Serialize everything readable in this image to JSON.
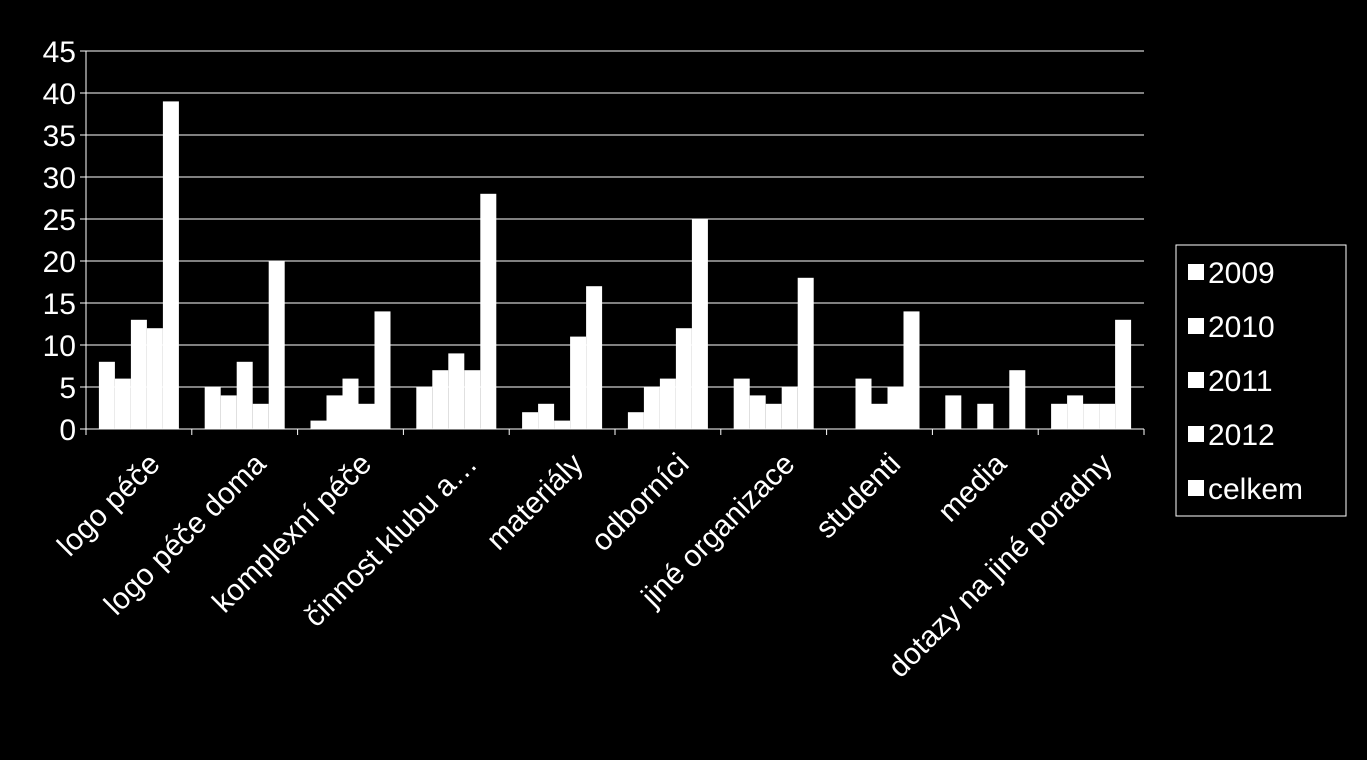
{
  "chart_data": {
    "type": "bar",
    "categories": [
      "logo péče",
      "logo péče doma",
      "komplexní péče",
      "činnost klubu a…",
      "materiály",
      "odborníci",
      "jiné organizace",
      "studenti",
      "media",
      "dotazy na jiné poradny"
    ],
    "series": [
      {
        "name": "2009",
        "color": "#ffffff",
        "values": [
          8,
          5,
          1,
          5,
          2,
          2,
          6,
          0,
          4,
          3
        ]
      },
      {
        "name": "2010",
        "color": "#ffffff",
        "values": [
          6,
          4,
          4,
          7,
          3,
          5,
          4,
          6,
          0,
          4
        ]
      },
      {
        "name": "2011",
        "color": "#ffffff",
        "values": [
          13,
          8,
          6,
          9,
          1,
          6,
          3,
          3,
          3,
          3
        ]
      },
      {
        "name": "2012",
        "color": "#ffffff",
        "values": [
          12,
          3,
          3,
          7,
          11,
          12,
          5,
          5,
          0,
          3
        ]
      },
      {
        "name": "celkem",
        "color": "#ffffff",
        "values": [
          39,
          20,
          14,
          28,
          17,
          25,
          18,
          14,
          7,
          13
        ]
      }
    ],
    "ylim": [
      0,
      45
    ],
    "yticks": [
      0,
      5,
      10,
      15,
      20,
      25,
      30,
      35,
      40,
      45
    ],
    "grid": true,
    "legend": "right"
  }
}
